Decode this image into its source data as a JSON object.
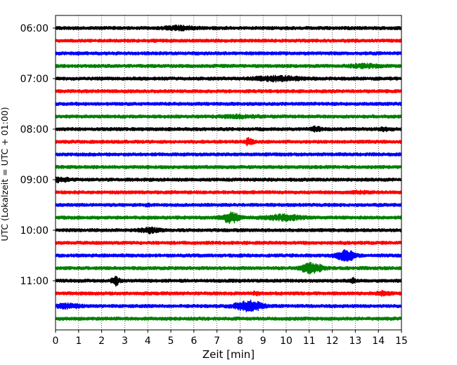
{
  "chart_data": {
    "type": "line",
    "title": "",
    "xlabel": "Zeit  [min]",
    "ylabel": "UTC (Lokalzeit = UTC + 01:00)",
    "xlim": [
      0,
      15
    ],
    "x_ticks": [
      0,
      1,
      2,
      3,
      4,
      5,
      6,
      7,
      8,
      9,
      10,
      11,
      12,
      13,
      14,
      15
    ],
    "y_tick_labels": [
      "06:00",
      "07:00",
      "08:00",
      "09:00",
      "10:00",
      "11:00"
    ],
    "y_tick_rows": [
      0,
      4,
      8,
      12,
      16,
      20
    ],
    "grid": {
      "vertical": true,
      "horizontal": false,
      "style": "dotted"
    },
    "trace_colors": [
      "#000000",
      "#ff0000",
      "#0000ff",
      "#008000"
    ],
    "rows": [
      {
        "start": "06:00",
        "events": [
          {
            "x": 5.4,
            "amp": 2.2,
            "width": 0.6
          }
        ]
      },
      {
        "start": "06:15",
        "events": []
      },
      {
        "start": "06:30",
        "events": []
      },
      {
        "start": "06:45",
        "events": [
          {
            "x": 13.4,
            "amp": 1.8,
            "width": 0.6
          }
        ]
      },
      {
        "start": "07:00",
        "events": [
          {
            "x": 9.6,
            "amp": 2.6,
            "width": 1.0
          }
        ]
      },
      {
        "start": "07:15",
        "events": []
      },
      {
        "start": "07:30",
        "events": []
      },
      {
        "start": "07:45",
        "events": [
          {
            "x": 8.0,
            "amp": 1.3,
            "width": 0.8
          }
        ]
      },
      {
        "start": "08:00",
        "events": [
          {
            "x": 11.3,
            "amp": 2.5,
            "width": 0.2
          },
          {
            "x": 14.3,
            "amp": 1.5,
            "width": 0.3
          }
        ]
      },
      {
        "start": "08:15",
        "events": [
          {
            "x": 8.4,
            "amp": 4.5,
            "width": 0.15
          }
        ]
      },
      {
        "start": "08:30",
        "events": []
      },
      {
        "start": "08:45",
        "events": []
      },
      {
        "start": "09:00",
        "events": [
          {
            "x": 0.2,
            "amp": 2.2,
            "width": 0.4
          }
        ]
      },
      {
        "start": "09:15",
        "events": [
          {
            "x": 13.2,
            "amp": 1.2,
            "width": 0.3
          }
        ]
      },
      {
        "start": "09:30",
        "events": [
          {
            "x": 4.0,
            "amp": 1.5,
            "width": 0.1
          }
        ]
      },
      {
        "start": "09:45",
        "events": [
          {
            "x": 7.6,
            "amp": 6.5,
            "width": 0.35
          },
          {
            "x": 9.9,
            "amp": 3.5,
            "width": 0.7
          }
        ]
      },
      {
        "start": "10:00",
        "events": [
          {
            "x": 4.1,
            "amp": 3.0,
            "width": 0.4
          }
        ]
      },
      {
        "start": "10:15",
        "events": []
      },
      {
        "start": "10:30",
        "events": [
          {
            "x": 12.6,
            "amp": 7.0,
            "width": 0.4
          }
        ]
      },
      {
        "start": "10:45",
        "events": [
          {
            "x": 11.1,
            "amp": 6.5,
            "width": 0.45
          }
        ]
      },
      {
        "start": "11:00",
        "events": [
          {
            "x": 2.6,
            "amp": 6.0,
            "width": 0.15
          },
          {
            "x": 12.9,
            "amp": 3.0,
            "width": 0.1
          }
        ]
      },
      {
        "start": "11:15",
        "events": [
          {
            "x": 14.2,
            "amp": 2.5,
            "width": 0.3
          },
          {
            "x": 8.7,
            "amp": 1.5,
            "width": 0.2
          }
        ]
      },
      {
        "start": "11:30",
        "events": [
          {
            "x": 8.4,
            "amp": 6.5,
            "width": 0.6
          },
          {
            "x": 0.5,
            "amp": 2.5,
            "width": 0.5
          }
        ]
      },
      {
        "start": "11:45",
        "events": []
      }
    ]
  }
}
